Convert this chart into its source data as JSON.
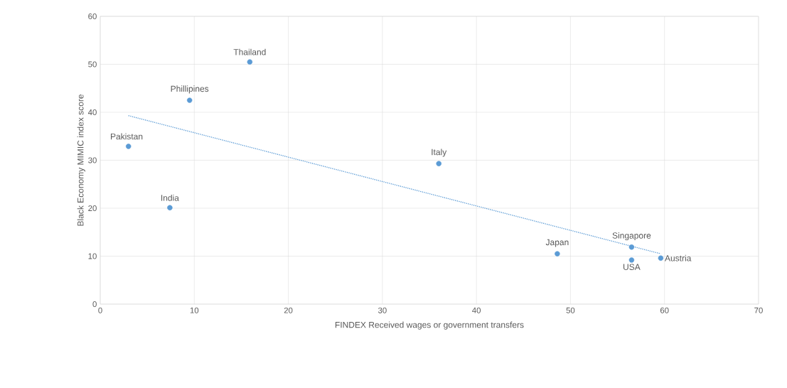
{
  "chart_data": {
    "type": "scatter",
    "xlabel": "FINDEX Received wages or government  transfers",
    "ylabel": "Black Economy MIMIC index score",
    "xlim": [
      0,
      70
    ],
    "ylim": [
      0,
      60
    ],
    "xticks": [
      0,
      10,
      20,
      30,
      40,
      50,
      60,
      70
    ],
    "yticks": [
      0,
      10,
      20,
      30,
      40,
      50,
      60
    ],
    "grid": true,
    "series": [
      {
        "color": "#5b9bd5",
        "x": [
          15.9,
          9.5,
          3.0,
          7.4,
          36.0,
          48.6,
          56.5,
          56.5,
          59.6
        ],
        "values": [
          50.5,
          42.5,
          32.9,
          20.1,
          29.3,
          10.5,
          11.9,
          9.2,
          9.6
        ]
      },
      {
        "type": "line",
        "line_style": "dotted",
        "color": "#5b9bd5",
        "x": [
          3.0,
          59.6
        ],
        "values": [
          39.3,
          10.5
        ]
      }
    ],
    "annotations": [
      {
        "text": "Thailand",
        "x": 15.9,
        "y": 50.5
      },
      {
        "text": "Phillipines",
        "x": 9.5,
        "y": 42.5
      },
      {
        "text": "Pakistan",
        "x": 3.0,
        "y": 32.9
      },
      {
        "text": "India",
        "x": 7.4,
        "y": 20.1
      },
      {
        "text": "Italy",
        "x": 36.0,
        "y": 29.3
      },
      {
        "text": "Japan",
        "x": 48.6,
        "y": 10.5
      },
      {
        "text": "Singapore",
        "x": 56.5,
        "y": 11.9
      },
      {
        "text": "USA",
        "x": 56.5,
        "y": 9.2
      },
      {
        "text": "Austria",
        "x": 59.6,
        "y": 9.6
      }
    ]
  }
}
